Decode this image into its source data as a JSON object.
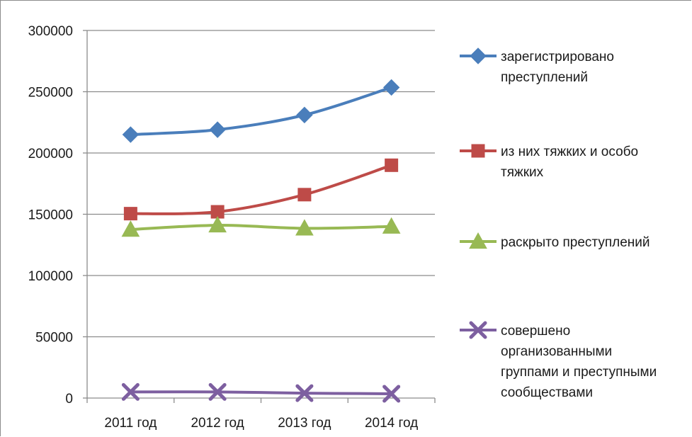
{
  "chart_data": {
    "type": "line",
    "categories": [
      "2011 год",
      "2012 год",
      "2013 год",
      "2014 год"
    ],
    "ylim": [
      0,
      300000
    ],
    "yticks": [
      "0",
      "50000",
      "100000",
      "150000",
      "200000",
      "250000",
      "300000"
    ],
    "grid": true,
    "legend_position": "right",
    "series": [
      {
        "name": "зарегистрировано преступлений",
        "name_lines": [
          "зарегистрировано",
          "преступлений"
        ],
        "marker": "diamond",
        "color": "#4a7ebb",
        "values": [
          215000,
          219000,
          231000,
          253500
        ]
      },
      {
        "name": "из них тяжких и особо тяжких",
        "name_lines": [
          "из них тяжких и особо",
          "тяжких"
        ],
        "marker": "square",
        "color": "#be4b48",
        "values": [
          150500,
          152000,
          166000,
          190000
        ]
      },
      {
        "name": "раскрыто преступлений",
        "name_lines": [
          "раскрыто преступлений"
        ],
        "marker": "triangle",
        "color": "#98b954",
        "values": [
          137500,
          141000,
          138500,
          140000
        ]
      },
      {
        "name": "совершено организованными группами и преступными сообществами",
        "name_lines": [
          "совершено",
          "организованными",
          "группами и преступными",
          "сообществами"
        ],
        "marker": "x",
        "color": "#7d5fa0",
        "values": [
          5000,
          5000,
          4000,
          3500
        ]
      }
    ]
  }
}
